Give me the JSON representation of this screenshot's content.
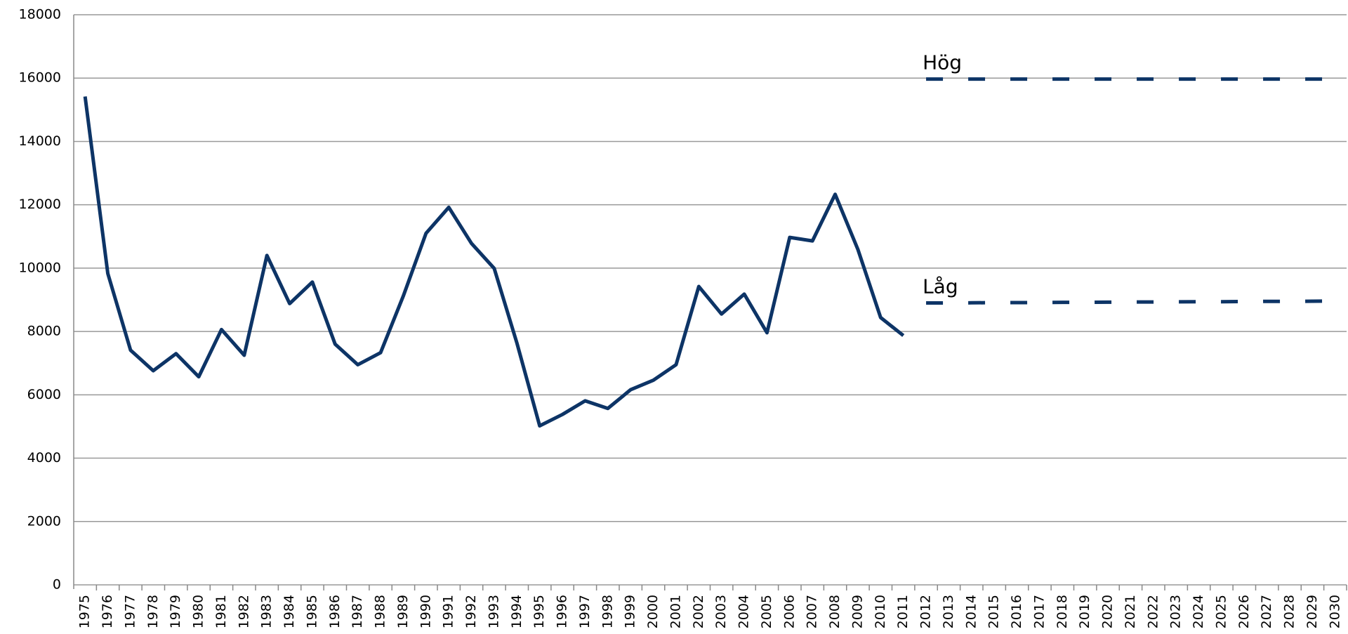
{
  "chart_data": {
    "type": "line",
    "categories": [
      "1975",
      "1976",
      "1977",
      "1978",
      "1979",
      "1980",
      "1981",
      "1982",
      "1983",
      "1984",
      "1985",
      "1986",
      "1987",
      "1988",
      "1989",
      "1990",
      "1991",
      "1992",
      "1993",
      "1994",
      "1995",
      "1996",
      "1997",
      "1998",
      "1999",
      "2000",
      "2001",
      "2002",
      "2003",
      "2004",
      "2005",
      "2006",
      "2007",
      "2008",
      "2009",
      "2010",
      "2011",
      "2012",
      "2013",
      "2014",
      "2015",
      "2016",
      "2017",
      "2018",
      "2019",
      "2020",
      "2021",
      "2022",
      "2023",
      "2024",
      "2025",
      "2026",
      "2027",
      "2028",
      "2029",
      "2030"
    ],
    "series": [
      {
        "color": "#0d3466",
        "dashed": false,
        "values": [
          15420,
          9830,
          7410,
          6760,
          7300,
          6570,
          8060,
          7250,
          10400,
          8880,
          9560,
          7600,
          6950,
          7330,
          9120,
          11100,
          11920,
          10780,
          9990,
          7630,
          5020,
          5380,
          5810,
          5570,
          6160,
          6460,
          6950,
          9420,
          8550,
          9180,
          7960,
          10970,
          10860,
          12330,
          10590,
          8440,
          7870,
          null,
          null,
          null,
          null,
          null,
          null,
          null,
          null,
          null,
          null,
          null,
          null,
          null,
          null,
          null,
          null,
          null,
          null,
          null
        ]
      },
      {
        "name": "Hög",
        "color": "#0d3466",
        "dashed": true,
        "values": [
          null,
          null,
          null,
          null,
          null,
          null,
          null,
          null,
          null,
          null,
          null,
          null,
          null,
          null,
          null,
          null,
          null,
          null,
          null,
          null,
          null,
          null,
          null,
          null,
          null,
          null,
          null,
          null,
          null,
          null,
          null,
          null,
          null,
          null,
          null,
          null,
          null,
          15970,
          15970,
          15970,
          15970,
          15970,
          15970,
          15970,
          15970,
          15970,
          15970,
          15970,
          15970,
          15970,
          15970,
          15970,
          15970,
          15970,
          15970,
          15970
        ]
      },
      {
        "name": "Låg",
        "color": "#0d3466",
        "dashed": true,
        "values": [
          null,
          null,
          null,
          null,
          null,
          null,
          null,
          null,
          null,
          null,
          null,
          null,
          null,
          null,
          null,
          null,
          null,
          null,
          null,
          null,
          null,
          null,
          null,
          null,
          null,
          null,
          null,
          null,
          null,
          null,
          null,
          null,
          null,
          null,
          null,
          null,
          null,
          8900,
          8900,
          8905,
          8910,
          8910,
          8915,
          8920,
          8920,
          8925,
          8930,
          8930,
          8935,
          8940,
          8940,
          8945,
          8950,
          8950,
          8955,
          8960
        ]
      }
    ],
    "ylim": [
      0,
      18000
    ],
    "yticks": [
      0,
      2000,
      4000,
      6000,
      8000,
      10000,
      12000,
      14000,
      16000,
      18000
    ],
    "grid": true
  }
}
